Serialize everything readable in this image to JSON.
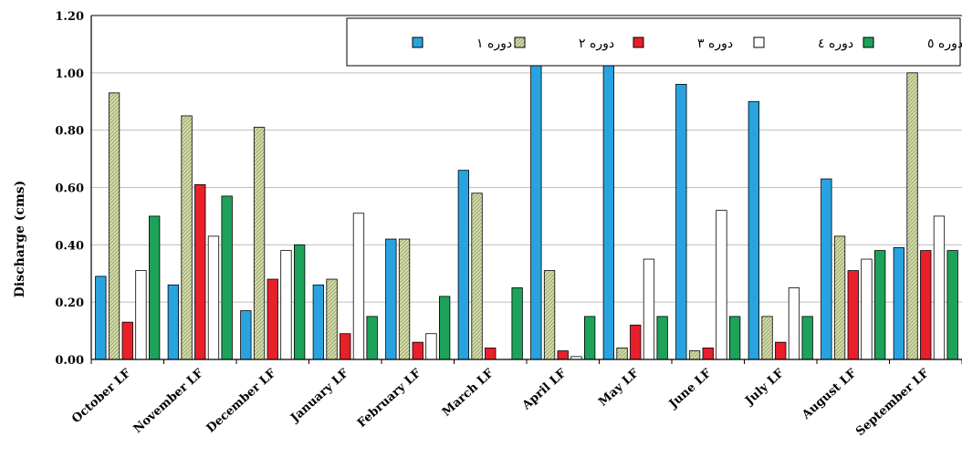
{
  "chart_data": {
    "type": "bar",
    "title": "",
    "xlabel": "",
    "ylabel": "Discharge (cms)",
    "ylim": [
      0,
      1.2
    ],
    "yticks": [
      "0.00",
      "0.20",
      "0.40",
      "0.60",
      "0.80",
      "1.00",
      "1.20"
    ],
    "grid": true,
    "legend_position": "top-right",
    "categories": [
      "October LF",
      "November LF",
      "December LF",
      "January LF",
      "February LF",
      "March LF",
      "April LF",
      "May LF",
      "June LF",
      "July LF",
      "August LF",
      "September LF"
    ],
    "series": [
      {
        "name": "دوره ۱",
        "color": "#29A3DF",
        "pattern": "solid",
        "values": [
          0.29,
          0.26,
          0.17,
          0.26,
          0.42,
          0.66,
          1.03,
          1.04,
          0.96,
          0.9,
          0.63,
          0.39
        ]
      },
      {
        "name": "دوره ۲",
        "color": "#D6DDB0",
        "pattern": "hatch",
        "values": [
          0.93,
          0.85,
          0.81,
          0.28,
          0.42,
          0.58,
          0.31,
          0.04,
          0.03,
          0.15,
          0.43,
          1.0
        ]
      },
      {
        "name": "دوره ۳",
        "color": "#E8202A",
        "pattern": "solid",
        "values": [
          0.13,
          0.61,
          0.28,
          0.09,
          0.06,
          0.04,
          0.03,
          0.12,
          0.04,
          0.06,
          0.31,
          0.38
        ]
      },
      {
        "name": "دوره ٤",
        "color": "#FFFFFF",
        "pattern": "solid",
        "values": [
          0.31,
          0.43,
          0.38,
          0.51,
          0.09,
          0.0,
          0.01,
          0.35,
          0.52,
          0.25,
          0.35,
          0.5
        ]
      },
      {
        "name": "دوره ٥",
        "color": "#1DA25A",
        "pattern": "solid",
        "values": [
          0.5,
          0.57,
          0.4,
          0.15,
          0.22,
          0.25,
          0.15,
          0.15,
          0.15,
          0.15,
          0.38,
          0.38
        ]
      }
    ]
  }
}
